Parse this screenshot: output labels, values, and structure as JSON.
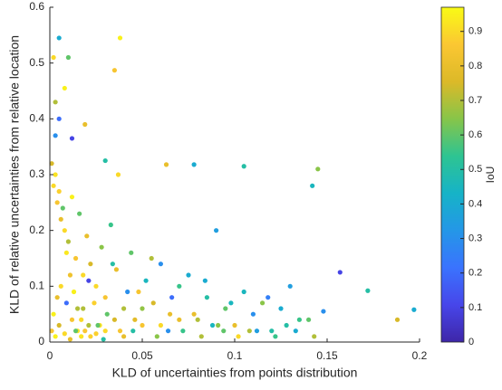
{
  "chart_data": {
    "type": "scatter",
    "xlabel": "KLD of uncertainties from points distribution",
    "ylabel": "KLD of relative uncertainties from relative location",
    "colorbar_label": "IoU",
    "xlim": [
      0,
      0.2
    ],
    "xticks": [
      0,
      0.05,
      0.1,
      0.15,
      0.2
    ],
    "ylim": [
      0,
      0.6
    ],
    "yticks": [
      0,
      0.1,
      0.2,
      0.3,
      0.4,
      0.5,
      0.6
    ],
    "clim": [
      0,
      0.97
    ],
    "cticks": [
      0,
      0.1,
      0.2,
      0.3,
      0.4,
      0.5,
      0.6,
      0.7,
      0.8,
      0.9
    ],
    "colormap": [
      "#3e26a8",
      "#4746ea",
      "#3a73fe",
      "#2497e7",
      "#16b3c7",
      "#2ec492",
      "#87c549",
      "#dcb928",
      "#fbc732",
      "#f9fb15"
    ],
    "x": [
      0.005,
      0.038,
      0.035,
      0.002,
      0.01,
      0.008,
      0.003,
      0.005,
      0.003,
      0.012,
      0.019,
      0.03,
      0.037,
      0.063,
      0.078,
      0.105,
      0.145,
      0.142,
      0.157,
      0.172,
      0.188,
      0.197,
      0.148,
      0.14,
      0.13,
      0.002,
      0.004,
      0.006,
      0.008,
      0.01,
      0.012,
      0.014,
      0.016,
      0.018,
      0.02,
      0.022,
      0.025,
      0.028,
      0.03,
      0.033,
      0.036,
      0.04,
      0.044,
      0.048,
      0.052,
      0.056,
      0.06,
      0.065,
      0.07,
      0.075,
      0.08,
      0.085,
      0.09,
      0.095,
      0.1,
      0.105,
      0.11,
      0.115,
      0.12,
      0.125,
      0.135,
      0.001,
      0.003,
      0.005,
      0.007,
      0.009,
      0.011,
      0.013,
      0.015,
      0.017,
      0.019,
      0.021,
      0.024,
      0.027,
      0.031,
      0.034,
      0.038,
      0.042,
      0.046,
      0.05,
      0.055,
      0.06,
      0.066,
      0.072,
      0.078,
      0.084,
      0.091,
      0.098,
      0.108,
      0.118,
      0.128,
      0.002,
      0.004,
      0.006,
      0.009,
      0.012,
      0.015,
      0.018,
      0.022,
      0.026,
      0.03,
      0.035,
      0.04,
      0.045,
      0.05,
      0.058,
      0.064,
      0.07,
      0.082,
      0.088,
      0.094,
      0.102,
      0.112,
      0.122,
      0.133,
      0.143,
      0.001,
      0.003,
      0.005,
      0.008,
      0.011,
      0.014,
      0.017,
      0.021,
      0.025,
      0.029
    ],
    "values": [
      0.545,
      0.545,
      0.487,
      0.51,
      0.51,
      0.455,
      0.43,
      0.4,
      0.37,
      0.365,
      0.39,
      0.325,
      0.3,
      0.318,
      0.318,
      0.315,
      0.31,
      0.28,
      0.125,
      0.092,
      0.04,
      0.058,
      0.055,
      0.04,
      0.1,
      0.28,
      0.25,
      0.22,
      0.2,
      0.18,
      0.26,
      0.15,
      0.23,
      0.12,
      0.19,
      0.14,
      0.1,
      0.17,
      0.08,
      0.21,
      0.13,
      0.06,
      0.16,
      0.09,
      0.11,
      0.07,
      0.14,
      0.05,
      0.1,
      0.12,
      0.04,
      0.08,
      0.2,
      0.06,
      0.03,
      0.09,
      0.05,
      0.07,
      0.02,
      0.06,
      0.04,
      0.32,
      0.3,
      0.27,
      0.24,
      0.16,
      0.12,
      0.09,
      0.06,
      0.04,
      0.02,
      0.11,
      0.07,
      0.03,
      0.05,
      0.14,
      0.02,
      0.09,
      0.04,
      0.06,
      0.15,
      0.03,
      0.08,
      0.02,
      0.05,
      0.11,
      0.03,
      0.07,
      0.02,
      0.08,
      0.03,
      0.05,
      0.08,
      0.1,
      0.07,
      0.04,
      0.02,
      0.06,
      0.01,
      0.03,
      0.02,
      0.04,
      0.01,
      0.02,
      0.03,
      0.01,
      0.02,
      0.04,
      0.01,
      0.03,
      0.02,
      0.01,
      0.02,
      0.01,
      0.02,
      0.01,
      0.02,
      0.01,
      0.03,
      0.015,
      0.005,
      0.02,
      0.01,
      0.03,
      0.015,
      0.005
    ],
    "iou": [
      0.4,
      0.95,
      0.85,
      0.9,
      0.6,
      0.95,
      0.7,
      0.2,
      0.3,
      0.1,
      0.8,
      0.5,
      0.9,
      0.8,
      0.4,
      0.5,
      0.65,
      0.45,
      0.1,
      0.5,
      0.75,
      0.4,
      0.3,
      0.6,
      0.35,
      0.9,
      0.85,
      0.8,
      0.9,
      0.7,
      0.95,
      0.85,
      0.6,
      0.9,
      0.8,
      0.75,
      0.9,
      0.65,
      0.85,
      0.55,
      0.8,
      0.7,
      0.6,
      0.85,
      0.45,
      0.75,
      0.3,
      0.8,
      0.55,
      0.4,
      0.7,
      0.5,
      0.35,
      0.6,
      0.8,
      0.45,
      0.3,
      0.65,
      0.5,
      0.4,
      0.55,
      0.75,
      0.92,
      0.88,
      0.6,
      0.93,
      0.82,
      0.95,
      0.7,
      0.9,
      0.86,
      0.1,
      0.88,
      0.92,
      0.6,
      0.5,
      0.85,
      0.3,
      0.78,
      0.66,
      0.7,
      0.9,
      0.2,
      0.55,
      0.8,
      0.4,
      0.65,
      0.45,
      0.7,
      0.25,
      0.5,
      0.95,
      0.8,
      0.9,
      0.2,
      0.85,
      0.92,
      0.7,
      0.88,
      0.6,
      0.9,
      0.75,
      0.8,
      0.5,
      0.85,
      0.65,
      0.3,
      0.8,
      0.7,
      0.45,
      0.6,
      0.9,
      0.35,
      0.55,
      0.4,
      0.7,
      0.85,
      0.95,
      0.75,
      0.9,
      0.8,
      0.6,
      0.92,
      0.7,
      0.88,
      0.5
    ]
  }
}
